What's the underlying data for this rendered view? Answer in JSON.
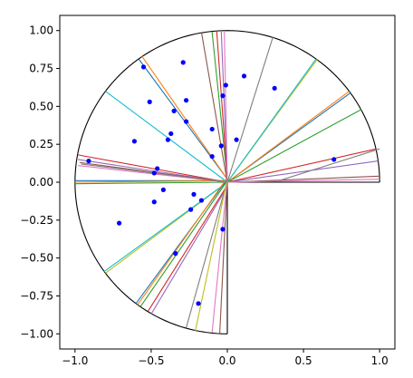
{
  "chart_data": {
    "type": "scatter",
    "title": "",
    "xlabel": "",
    "ylabel": "",
    "xlim": [
      -1.1,
      1.1
    ],
    "ylim": [
      -1.1,
      1.1
    ],
    "grid": false,
    "x_ticks": [
      -1.0,
      -0.5,
      0.0,
      0.5,
      1.0
    ],
    "x_tick_labels": [
      "−1.0",
      "−0.5",
      "0.0",
      "0.5",
      "1.0"
    ],
    "y_ticks": [
      1.0,
      0.75,
      0.5,
      0.25,
      0.0,
      -0.25,
      -0.5,
      -0.75,
      -1.0
    ],
    "y_tick_labels": [
      "1.00",
      "0.75",
      "0.50",
      "0.25",
      "0.00",
      "−0.25",
      "−0.50",
      "−0.75",
      "−1.00"
    ],
    "boundary": {
      "description": "unit circle arc covering angles 0 to 270 degrees (counter-clockwise from +x), with radii from origin to (1,0) and (0,-1)",
      "color": "#000000"
    },
    "points": {
      "color": "#0000ff",
      "xy": [
        [
          -0.55,
          0.76
        ],
        [
          -0.29,
          0.79
        ],
        [
          0.11,
          0.7
        ],
        [
          0.31,
          0.62
        ],
        [
          -0.51,
          0.53
        ],
        [
          -0.27,
          0.54
        ],
        [
          -0.35,
          0.47
        ],
        [
          -0.03,
          0.57
        ],
        [
          -0.61,
          0.27
        ],
        [
          -0.37,
          0.32
        ],
        [
          -0.39,
          0.28
        ],
        [
          -0.1,
          0.35
        ],
        [
          0.06,
          0.28
        ],
        [
          -0.04,
          0.24
        ],
        [
          -0.1,
          0.17
        ],
        [
          0.7,
          0.15
        ],
        [
          -0.91,
          0.14
        ],
        [
          -0.46,
          0.09
        ],
        [
          -0.48,
          0.06
        ],
        [
          -0.42,
          -0.05
        ],
        [
          -0.22,
          -0.08
        ],
        [
          -0.17,
          -0.12
        ],
        [
          -0.48,
          -0.13
        ],
        [
          -0.24,
          -0.18
        ],
        [
          -0.71,
          -0.27
        ],
        [
          -0.03,
          -0.31
        ],
        [
          -0.34,
          -0.47
        ],
        [
          -0.19,
          -0.8
        ],
        [
          -0.27,
          0.4
        ],
        [
          -0.01,
          0.64
        ]
      ]
    },
    "line_colors": [
      "#1f77b4",
      "#ff7f0e",
      "#2ca02c",
      "#d62728",
      "#9467bd",
      "#8c564b",
      "#e377c2",
      "#7f7f7f",
      "#bcbd22",
      "#17becf"
    ],
    "lines": [
      [
        [
          0.0,
          0.01
        ],
        [
          -1.0,
          0.01
        ]
      ],
      [
        [
          0.0,
          0.01
        ],
        [
          -1.0,
          0.0
        ]
      ],
      [
        [
          0.0,
          0.0
        ],
        [
          -1.0,
          -0.01
        ]
      ],
      [
        [
          0.0,
          0.0
        ],
        [
          -0.98,
          0.18
        ]
      ],
      [
        [
          0.0,
          0.0
        ],
        [
          -0.98,
          0.15
        ]
      ],
      [
        [
          0.0,
          0.0
        ],
        [
          -0.97,
          0.13
        ]
      ],
      [
        [
          0.0,
          0.0
        ],
        [
          -0.98,
          0.11
        ]
      ],
      [
        [
          0.0,
          0.0
        ],
        [
          -0.96,
          0.12
        ]
      ],
      [
        [
          0.0,
          0.0
        ],
        [
          -0.8,
          -0.6
        ]
      ],
      [
        [
          0.0,
          0.0
        ],
        [
          -0.81,
          -0.59
        ]
      ],
      [
        [
          0.0,
          0.02
        ],
        [
          -0.6,
          -0.8
        ]
      ],
      [
        [
          0.0,
          0.03
        ],
        [
          -0.59,
          -0.81
        ]
      ],
      [
        [
          0.0,
          0.01
        ],
        [
          -0.57,
          -0.82
        ]
      ],
      [
        [
          0.0,
          -0.02
        ],
        [
          -0.52,
          -0.85
        ]
      ],
      [
        [
          0.0,
          -0.03
        ],
        [
          -0.5,
          -0.87
        ]
      ],
      [
        [
          0.0,
          0.02
        ],
        [
          -0.05,
          -1.0
        ]
      ],
      [
        [
          0.0,
          0.02
        ],
        [
          -0.1,
          -0.99
        ]
      ],
      [
        [
          0.0,
          0.01
        ],
        [
          -0.27,
          -0.96
        ]
      ],
      [
        [
          0.0,
          0.02
        ],
        [
          -0.21,
          -0.98
        ]
      ],
      [
        [
          0.0,
          0.0
        ],
        [
          -0.8,
          0.6
        ]
      ],
      [
        [
          0.0,
          0.02
        ],
        [
          -0.58,
          0.81
        ]
      ],
      [
        [
          0.0,
          0.02
        ],
        [
          -0.56,
          0.83
        ]
      ],
      [
        [
          0.0,
          0.02
        ],
        [
          -0.1,
          0.99
        ]
      ],
      [
        [
          0.0,
          0.02
        ],
        [
          -0.07,
          1.0
        ]
      ],
      [
        [
          0.0,
          0.02
        ],
        [
          -0.04,
          1.0
        ]
      ],
      [
        [
          0.0,
          0.0
        ],
        [
          -0.17,
          0.99
        ]
      ],
      [
        [
          0.0,
          0.0
        ],
        [
          -0.02,
          1.0
        ]
      ],
      [
        [
          0.0,
          0.0
        ],
        [
          0.3,
          0.96
        ]
      ],
      [
        [
          0.0,
          0.0
        ],
        [
          0.59,
          0.81
        ]
      ],
      [
        [
          0.0,
          0.0
        ],
        [
          0.58,
          0.81
        ]
      ],
      [
        [
          0.0,
          0.0
        ],
        [
          0.81,
          0.59
        ]
      ],
      [
        [
          0.0,
          0.0
        ],
        [
          0.8,
          0.6
        ]
      ],
      [
        [
          0.0,
          0.0
        ],
        [
          0.88,
          0.48
        ]
      ],
      [
        [
          0.0,
          0.0
        ],
        [
          0.98,
          0.22
        ]
      ],
      [
        [
          0.0,
          0.0
        ],
        [
          0.99,
          0.14
        ]
      ],
      [
        [
          0.0,
          0.0
        ],
        [
          1.0,
          0.04
        ]
      ],
      [
        [
          0.0,
          0.0
        ],
        [
          1.0,
          0.02
        ]
      ],
      [
        [
          0.34,
          0.01
        ],
        [
          1.0,
          0.22
        ]
      ]
    ]
  }
}
